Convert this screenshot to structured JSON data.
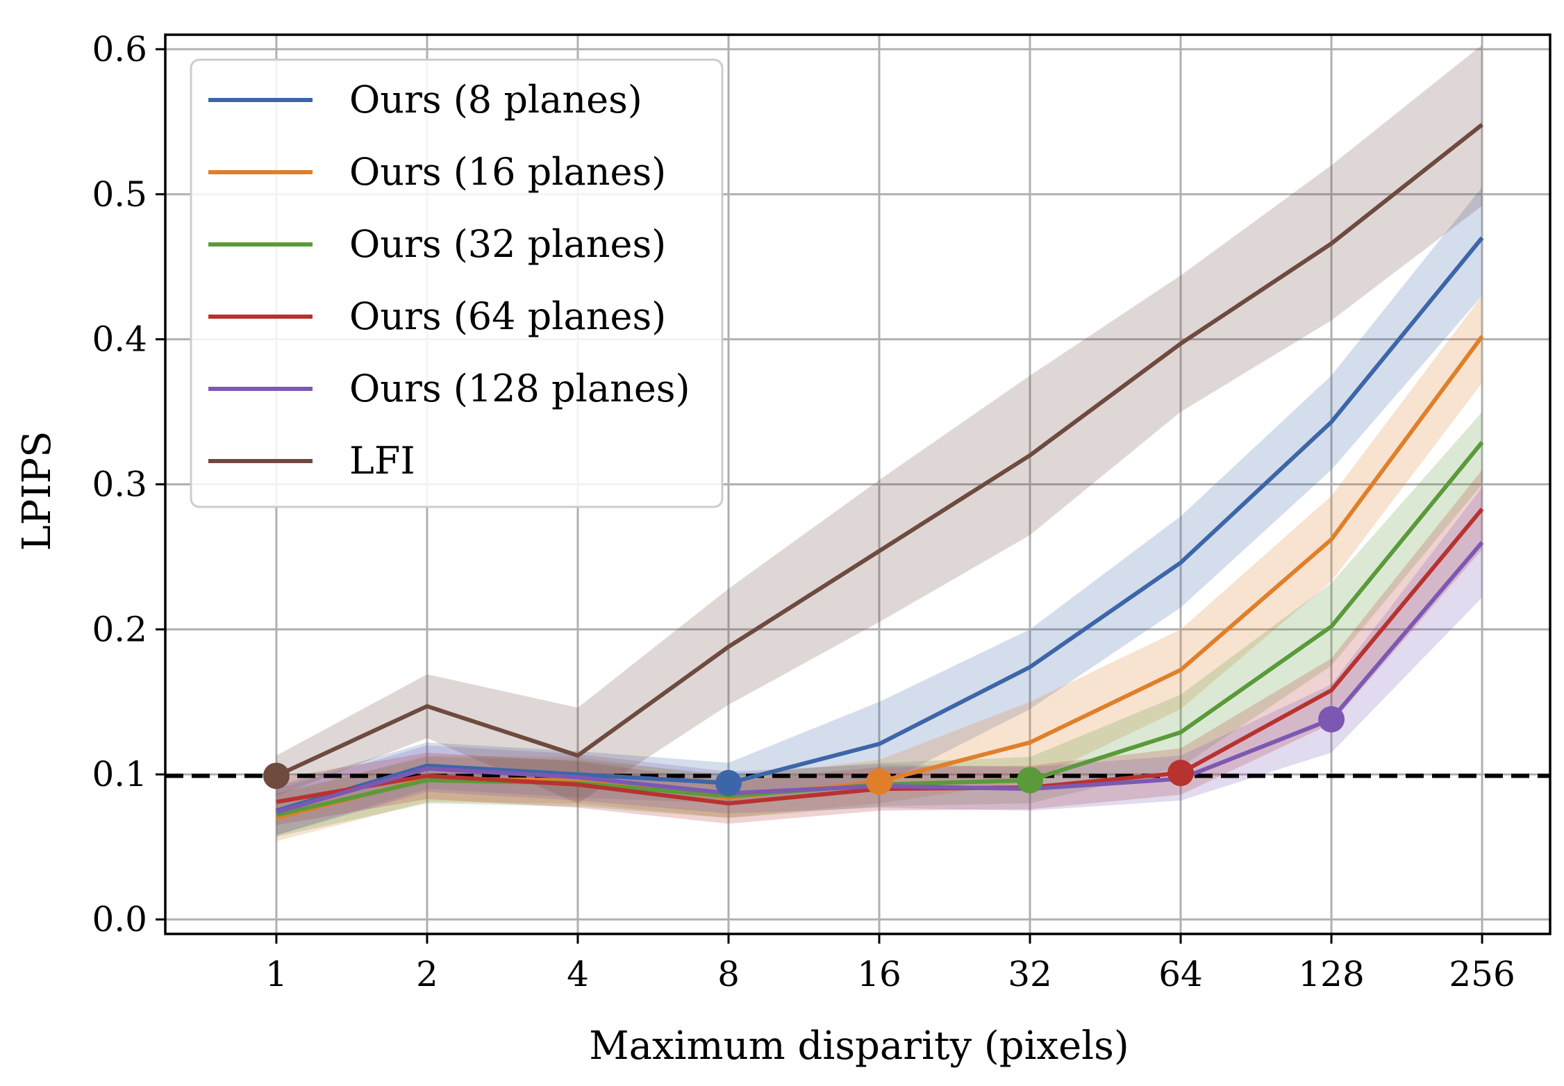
{
  "chart_data": {
    "type": "line",
    "title": "",
    "xlabel": "Maximum disparity (pixels)",
    "ylabel": "LPIPS",
    "x_scale": "log2",
    "categories": [
      "1",
      "2",
      "4",
      "8",
      "16",
      "32",
      "64",
      "128",
      "256"
    ],
    "x": [
      1,
      2,
      4,
      8,
      16,
      32,
      64,
      128,
      256
    ],
    "yticks": [
      "0.0",
      "0.1",
      "0.2",
      "0.3",
      "0.4",
      "0.5",
      "0.6"
    ],
    "ylim": [
      -0.01,
      0.61
    ],
    "xlim": [
      0.6,
      350
    ],
    "grid": true,
    "legend_position": "top-left",
    "reference_line": {
      "y": 0.099,
      "style": "dashed",
      "color": "#000000"
    },
    "series": [
      {
        "name": "Ours (8 planes)",
        "color": "#3d66a8",
        "values": [
          0.075,
          0.106,
          0.1,
          0.094,
          0.121,
          0.174,
          0.246,
          0.343,
          0.47
        ],
        "lower": [
          0.058,
          0.09,
          0.084,
          0.08,
          0.092,
          0.145,
          0.215,
          0.31,
          0.43
        ],
        "upper": [
          0.092,
          0.122,
          0.116,
          0.108,
          0.15,
          0.2,
          0.278,
          0.375,
          0.505
        ],
        "marker": {
          "x": 8,
          "y": 0.094
        }
      },
      {
        "name": "Ours (16 planes)",
        "color": "#e07f2a",
        "values": [
          0.07,
          0.097,
          0.096,
          0.084,
          0.095,
          0.122,
          0.172,
          0.262,
          0.402
        ],
        "lower": [
          0.054,
          0.081,
          0.08,
          0.07,
          0.08,
          0.095,
          0.145,
          0.233,
          0.37
        ],
        "upper": [
          0.086,
          0.113,
          0.112,
          0.098,
          0.11,
          0.15,
          0.2,
          0.292,
          0.43
        ],
        "marker": {
          "x": 16,
          "y": 0.095
        }
      },
      {
        "name": "Ours (32 planes)",
        "color": "#5a9a3a",
        "values": [
          0.072,
          0.096,
          0.094,
          0.085,
          0.093,
          0.096,
          0.129,
          0.202,
          0.329
        ],
        "lower": [
          0.057,
          0.08,
          0.078,
          0.07,
          0.078,
          0.08,
          0.105,
          0.175,
          0.3
        ],
        "upper": [
          0.087,
          0.112,
          0.11,
          0.1,
          0.108,
          0.112,
          0.155,
          0.232,
          0.35
        ],
        "marker": {
          "x": 32,
          "y": 0.096
        }
      },
      {
        "name": "Ours (64 planes)",
        "color": "#b8322f",
        "values": [
          0.081,
          0.099,
          0.093,
          0.08,
          0.09,
          0.091,
          0.101,
          0.158,
          0.283
        ],
        "lower": [
          0.065,
          0.083,
          0.077,
          0.066,
          0.075,
          0.076,
          0.086,
          0.135,
          0.255
        ],
        "upper": [
          0.097,
          0.115,
          0.109,
          0.095,
          0.105,
          0.106,
          0.118,
          0.18,
          0.31
        ],
        "marker": {
          "x": 64,
          "y": 0.101
        }
      },
      {
        "name": "Ours (128 planes)",
        "color": "#7d58b3",
        "values": [
          0.074,
          0.104,
          0.098,
          0.087,
          0.092,
          0.09,
          0.097,
          0.138,
          0.26
        ],
        "lower": [
          0.058,
          0.088,
          0.082,
          0.073,
          0.077,
          0.075,
          0.082,
          0.115,
          0.222
        ],
        "upper": [
          0.09,
          0.12,
          0.114,
          0.102,
          0.107,
          0.105,
          0.113,
          0.162,
          0.298
        ],
        "marker": {
          "x": 128,
          "y": 0.138
        }
      },
      {
        "name": "LFI",
        "color": "#6e4a3f",
        "values": [
          0.099,
          0.147,
          0.113,
          0.188,
          0.254,
          0.32,
          0.397,
          0.466,
          0.548
        ],
        "lower": [
          0.085,
          0.125,
          0.08,
          0.148,
          0.205,
          0.265,
          0.35,
          0.413,
          0.492
        ],
        "upper": [
          0.113,
          0.169,
          0.146,
          0.228,
          0.303,
          0.375,
          0.444,
          0.52,
          0.603
        ],
        "marker": {
          "x": 1,
          "y": 0.099
        }
      }
    ]
  }
}
